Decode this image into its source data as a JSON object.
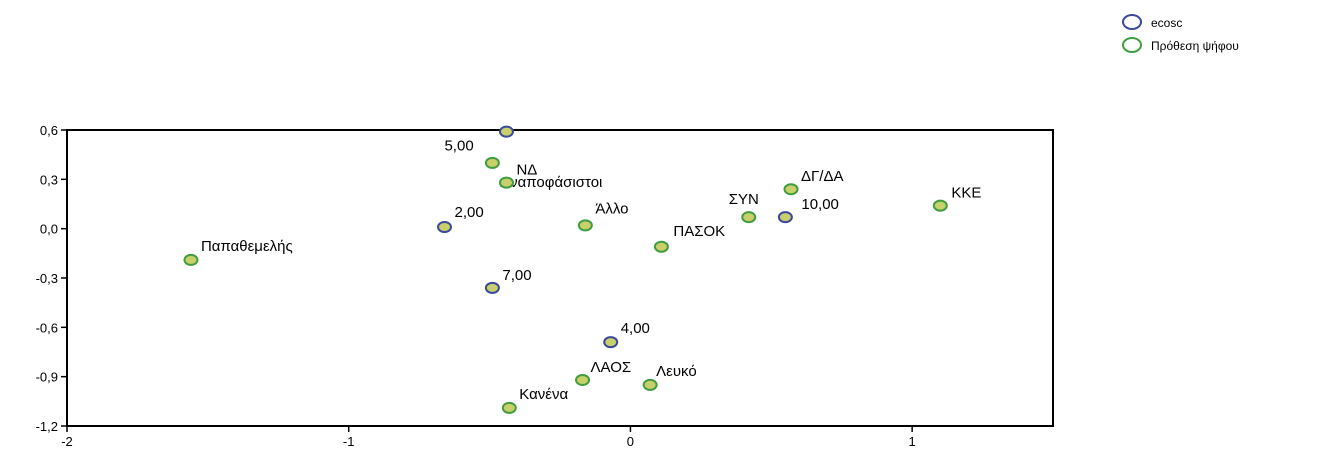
{
  "chart_data": {
    "type": "scatter",
    "xlim": [
      -2,
      1.5
    ],
    "ylim": [
      -1.2,
      0.6
    ],
    "x_ticks": [
      -2,
      -1,
      0,
      1
    ],
    "x_tick_labels": [
      "-2",
      "-1",
      "0",
      "1"
    ],
    "y_ticks": [
      0.6,
      0.3,
      0.0,
      -0.3,
      -0.6,
      -0.9,
      -1.2
    ],
    "y_tick_labels": [
      "0,6",
      "0,3",
      "0,0",
      "-0,3",
      "-0,6",
      "-0,9",
      "-1,2"
    ],
    "grid": false,
    "legend_position": "top-right",
    "colors": {
      "ecosc_edge": "#3b4a9c",
      "vote_edge": "#3f9e3f",
      "point_fill": "#c9cf6a"
    },
    "series": [
      {
        "name": "ecosc",
        "points": [
          {
            "label": "5,00",
            "x": -0.44,
            "y": 0.59
          },
          {
            "label": "2,00",
            "x": -0.66,
            "y": 0.01
          },
          {
            "label": "7,00",
            "x": -0.49,
            "y": -0.36
          },
          {
            "label": "4,00",
            "x": -0.07,
            "y": -0.69
          },
          {
            "label": "10,00",
            "x": 0.55,
            "y": 0.07
          }
        ]
      },
      {
        "name": "Πρόθεση ψήφου",
        "points": [
          {
            "label": "Αναποφάσιστοι",
            "x": -0.49,
            "y": 0.4
          },
          {
            "label": "ΝΔ",
            "x": -0.44,
            "y": 0.28
          },
          {
            "label": "Άλλο",
            "x": -0.16,
            "y": 0.02
          },
          {
            "label": "Παπαθεμελής",
            "x": -1.56,
            "y": -0.19
          },
          {
            "label": "ΠΑΣΟΚ",
            "x": 0.11,
            "y": -0.11
          },
          {
            "label": "ΣΥΝ",
            "x": 0.42,
            "y": 0.07
          },
          {
            "label": "ΔΓ/ΔΑ",
            "x": 0.57,
            "y": 0.24
          },
          {
            "label": "ΚΚΕ",
            "x": 1.1,
            "y": 0.14
          },
          {
            "label": "ΛΑΟΣ",
            "x": -0.17,
            "y": -0.92
          },
          {
            "label": "Λευκό",
            "x": 0.07,
            "y": -0.95
          },
          {
            "label": "Κανένα",
            "x": -0.43,
            "y": -1.09
          }
        ]
      }
    ]
  }
}
